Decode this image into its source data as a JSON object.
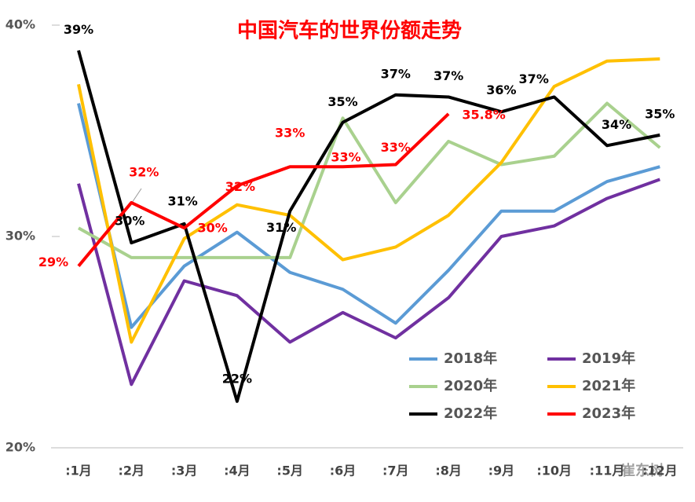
{
  "chart_data": {
    "type": "line",
    "title": "中国汽车的世界份额走势",
    "watermark": "崔东树",
    "categories": [
      ":1月",
      ":2月",
      ":3月",
      ":4月",
      ":5月",
      ":6月",
      ":7月",
      ":8月",
      ":9月",
      ":10月",
      ":11月",
      ":12月"
    ],
    "ylim": [
      20,
      40
    ],
    "yticks": [
      {
        "value": 20,
        "label": "20%"
      },
      {
        "value": 30,
        "label": "30%"
      },
      {
        "value": 40,
        "label": "40%"
      }
    ],
    "grid": false,
    "series": [
      {
        "name": "2018年",
        "color": "#5b9bd5",
        "values": [
          36.3,
          25.7,
          28.6,
          30.2,
          28.3,
          27.5,
          25.9,
          28.4,
          31.2,
          31.2,
          32.6,
          33.3
        ]
      },
      {
        "name": "2019年",
        "color": "#7030a0",
        "values": [
          32.5,
          23.0,
          27.9,
          27.2,
          25.0,
          26.4,
          25.2,
          27.1,
          30.0,
          30.5,
          31.8,
          32.7
        ]
      },
      {
        "name": "2020年",
        "color": "#a9d18e",
        "values": [
          30.4,
          29.0,
          29.0,
          29.0,
          29.0,
          35.6,
          31.6,
          34.5,
          33.4,
          33.8,
          36.3,
          34.2
        ]
      },
      {
        "name": "2021年",
        "color": "#ffc000",
        "values": [
          37.2,
          25.0,
          29.9,
          31.5,
          31.0,
          28.9,
          29.5,
          31.0,
          33.5,
          37.1,
          38.3,
          38.4
        ]
      },
      {
        "name": "2022年",
        "color": "#000000",
        "values": [
          38.8,
          29.7,
          30.6,
          22.2,
          31.2,
          35.4,
          36.7,
          36.6,
          35.9,
          36.6,
          34.3,
          34.8
        ],
        "value_labels": [
          "39%",
          "30%",
          "31%",
          "22%",
          "31%",
          "35%",
          "37%",
          "37%",
          "36%",
          "37%",
          "34%",
          "35%"
        ]
      },
      {
        "name": "2023年",
        "color": "#ff0000",
        "values": [
          28.6,
          31.6,
          30.4,
          32.4,
          33.3,
          33.3,
          33.4,
          35.8,
          null,
          null,
          null,
          null
        ],
        "value_labels": [
          "29%",
          "32%",
          "30%",
          "32%",
          "33%",
          "33%",
          "33%",
          "35.8%",
          null,
          null,
          null,
          null
        ]
      }
    ]
  }
}
